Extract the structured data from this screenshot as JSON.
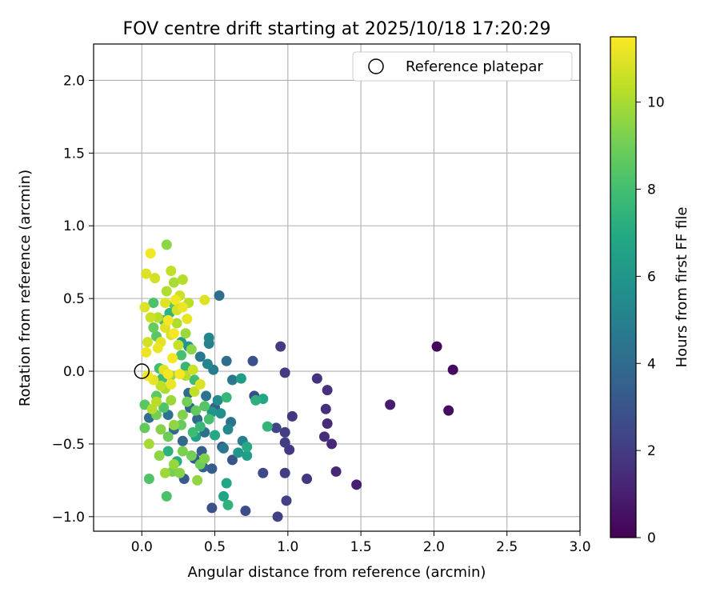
{
  "chart_data": {
    "type": "scatter",
    "title": "FOV centre drift starting at 2025/10/18 17:20:29",
    "xlabel": "Angular distance from reference (arcmin)",
    "ylabel": "Rotation from reference (arcmin)",
    "xlim": [
      -0.33,
      3.0
    ],
    "ylim": [
      -1.1,
      2.25
    ],
    "xticks": [
      0.0,
      0.5,
      1.0,
      1.5,
      2.0,
      2.5,
      3.0
    ],
    "xtick_labels": [
      "0.0",
      "0.5",
      "1.0",
      "1.5",
      "2.0",
      "2.5",
      "3.0"
    ],
    "yticks": [
      -1.0,
      -0.5,
      0.0,
      0.5,
      1.0,
      1.5,
      2.0
    ],
    "ytick_labels": [
      "−1.0",
      "−0.5",
      "0.0",
      "0.5",
      "1.0",
      "1.5",
      "2.0"
    ],
    "grid": true,
    "legend": {
      "position": "top-right",
      "label": "Reference platepar"
    },
    "reference_point": {
      "x": 0.0,
      "y": 0.0
    },
    "colorbar": {
      "label": "Hours from first FF file",
      "range": [
        0,
        11.5
      ],
      "ticks": [
        0,
        2,
        4,
        6,
        8,
        10
      ],
      "tick_labels": [
        "0",
        "2",
        "4",
        "6",
        "8",
        "10"
      ],
      "colormap": "viridis"
    },
    "points": [
      {
        "x": 2.02,
        "y": 0.17,
        "h": 0.2
      },
      {
        "x": 2.13,
        "y": 0.01,
        "h": 0.3
      },
      {
        "x": 2.1,
        "y": -0.27,
        "h": 0.4
      },
      {
        "x": 1.7,
        "y": -0.23,
        "h": 0.9
      },
      {
        "x": 1.47,
        "y": -0.78,
        "h": 1.0
      },
      {
        "x": 1.33,
        "y": -0.69,
        "h": 1.3
      },
      {
        "x": 1.3,
        "y": -0.5,
        "h": 1.3
      },
      {
        "x": 1.27,
        "y": -0.36,
        "h": 1.4
      },
      {
        "x": 1.26,
        "y": -0.26,
        "h": 1.5
      },
      {
        "x": 1.25,
        "y": -0.45,
        "h": 1.5
      },
      {
        "x": 1.27,
        "y": -0.13,
        "h": 1.6
      },
      {
        "x": 1.2,
        "y": -0.05,
        "h": 1.7
      },
      {
        "x": 1.13,
        "y": -0.74,
        "h": 1.8
      },
      {
        "x": 1.03,
        "y": -0.31,
        "h": 1.8
      },
      {
        "x": 1.01,
        "y": -0.54,
        "h": 1.9
      },
      {
        "x": 0.98,
        "y": -0.01,
        "h": 2.0
      },
      {
        "x": 0.95,
        "y": 0.17,
        "h": 2.0
      },
      {
        "x": 0.98,
        "y": -0.42,
        "h": 2.0
      },
      {
        "x": 0.98,
        "y": -0.49,
        "h": 2.1
      },
      {
        "x": 0.98,
        "y": -0.7,
        "h": 2.1
      },
      {
        "x": 0.99,
        "y": -0.89,
        "h": 2.2
      },
      {
        "x": 0.93,
        "y": -1.0,
        "h": 2.2
      },
      {
        "x": 0.92,
        "y": -0.39,
        "h": 2.3
      },
      {
        "x": 0.83,
        "y": -0.7,
        "h": 2.5
      },
      {
        "x": 0.77,
        "y": -0.17,
        "h": 2.7
      },
      {
        "x": 0.76,
        "y": 0.07,
        "h": 2.8
      },
      {
        "x": 0.71,
        "y": -0.96,
        "h": 2.7
      },
      {
        "x": 0.48,
        "y": -0.94,
        "h": 2.8
      },
      {
        "x": 0.62,
        "y": -0.61,
        "h": 3.0
      },
      {
        "x": 0.55,
        "y": -0.52,
        "h": 3.2
      },
      {
        "x": 0.48,
        "y": -0.67,
        "h": 3.3
      },
      {
        "x": 0.5,
        "y": -0.25,
        "h": 3.5
      },
      {
        "x": 0.41,
        "y": -0.55,
        "h": 3.4
      },
      {
        "x": 0.36,
        "y": -0.6,
        "h": 3.2
      },
      {
        "x": 0.29,
        "y": -0.74,
        "h": 3.3
      },
      {
        "x": 0.42,
        "y": -0.66,
        "h": 3.6
      },
      {
        "x": 0.53,
        "y": 0.52,
        "h": 4.2
      },
      {
        "x": 0.46,
        "y": 0.23,
        "h": 5.2
      },
      {
        "x": 0.46,
        "y": 0.19,
        "h": 5.0
      },
      {
        "x": 0.49,
        "y": 0.01,
        "h": 4.8
      },
      {
        "x": 0.58,
        "y": 0.07,
        "h": 4.2
      },
      {
        "x": 0.62,
        "y": -0.06,
        "h": 4.6
      },
      {
        "x": 0.61,
        "y": -0.35,
        "h": 4.4
      },
      {
        "x": 0.69,
        "y": -0.48,
        "h": 5.0
      },
      {
        "x": 0.72,
        "y": -0.58,
        "h": 6.5
      },
      {
        "x": 0.59,
        "y": -0.4,
        "h": 5.4
      },
      {
        "x": 0.54,
        "y": -0.29,
        "h": 5.7
      },
      {
        "x": 0.52,
        "y": -0.2,
        "h": 5.5
      },
      {
        "x": 0.44,
        "y": -0.17,
        "h": 4.4
      },
      {
        "x": 0.4,
        "y": 0.1,
        "h": 4.6
      },
      {
        "x": 0.45,
        "y": 0.05,
        "h": 5.3
      },
      {
        "x": 0.43,
        "y": -0.42,
        "h": 4.2
      },
      {
        "x": 0.38,
        "y": -0.33,
        "h": 3.8
      },
      {
        "x": 0.33,
        "y": -0.25,
        "h": 3.6
      },
      {
        "x": 0.28,
        "y": -0.48,
        "h": 3.9
      },
      {
        "x": 0.22,
        "y": -0.4,
        "h": 4.1
      },
      {
        "x": 0.18,
        "y": -0.3,
        "h": 4.4
      },
      {
        "x": 0.05,
        "y": -0.32,
        "h": 4.3
      },
      {
        "x": 0.32,
        "y": -0.15,
        "h": 4.0
      },
      {
        "x": 0.56,
        "y": -0.53,
        "h": 4.7
      },
      {
        "x": 0.66,
        "y": -0.56,
        "h": 6.0
      },
      {
        "x": 0.58,
        "y": -0.77,
        "h": 6.8
      },
      {
        "x": 0.56,
        "y": -0.86,
        "h": 6.6
      },
      {
        "x": 0.59,
        "y": -0.92,
        "h": 7.4
      },
      {
        "x": 0.68,
        "y": -0.05,
        "h": 6.3
      },
      {
        "x": 0.72,
        "y": -0.52,
        "h": 7.0
      },
      {
        "x": 0.78,
        "y": -0.2,
        "h": 7.3
      },
      {
        "x": 0.83,
        "y": -0.19,
        "h": 6.8
      },
      {
        "x": 0.86,
        "y": -0.38,
        "h": 7.5
      },
      {
        "x": 0.58,
        "y": -0.18,
        "h": 7.6
      },
      {
        "x": 0.48,
        "y": -0.28,
        "h": 6.0
      },
      {
        "x": 0.5,
        "y": -0.44,
        "h": 6.9
      },
      {
        "x": 0.37,
        "y": -0.45,
        "h": 6.4
      },
      {
        "x": 0.32,
        "y": 0.17,
        "h": 6.0
      },
      {
        "x": 0.27,
        "y": 0.2,
        "h": 6.2
      },
      {
        "x": 0.4,
        "y": -0.38,
        "h": 7.6
      },
      {
        "x": 0.35,
        "y": -0.42,
        "h": 7.8
      },
      {
        "x": 0.24,
        "y": -0.62,
        "h": 7.1
      },
      {
        "x": 0.18,
        "y": -0.55,
        "h": 7.3
      },
      {
        "x": 0.17,
        "y": -0.86,
        "h": 8.2
      },
      {
        "x": 0.05,
        "y": -0.74,
        "h": 8.3
      },
      {
        "x": 0.02,
        "y": -0.39,
        "h": 8.7
      },
      {
        "x": 0.02,
        "y": -0.23,
        "h": 8.5
      },
      {
        "x": 0.1,
        "y": -0.17,
        "h": 8.6
      },
      {
        "x": 0.14,
        "y": -0.05,
        "h": 7.8
      },
      {
        "x": 0.12,
        "y": 0.02,
        "h": 8.0
      },
      {
        "x": 0.1,
        "y": 0.24,
        "h": 8.5
      },
      {
        "x": 0.08,
        "y": 0.3,
        "h": 8.8
      },
      {
        "x": 0.08,
        "y": 0.47,
        "h": 8.2
      },
      {
        "x": 0.15,
        "y": 0.35,
        "h": 7.9
      },
      {
        "x": 0.19,
        "y": 0.4,
        "h": 7.4
      },
      {
        "x": 0.22,
        "y": 0.46,
        "h": 8.4
      },
      {
        "x": 0.27,
        "y": 0.11,
        "h": 8.1
      },
      {
        "x": 0.3,
        "y": 0.03,
        "h": 7.6
      },
      {
        "x": 0.36,
        "y": -0.06,
        "h": 7.9
      },
      {
        "x": 0.4,
        "y": -0.64,
        "h": 8.9
      },
      {
        "x": 0.43,
        "y": -0.6,
        "h": 9.3
      },
      {
        "x": 0.38,
        "y": -0.75,
        "h": 9.6
      },
      {
        "x": 0.34,
        "y": -0.58,
        "h": 9.0
      },
      {
        "x": 0.28,
        "y": -0.55,
        "h": 9.2
      },
      {
        "x": 0.26,
        "y": -0.7,
        "h": 9.4
      },
      {
        "x": 0.22,
        "y": -0.64,
        "h": 9.7
      },
      {
        "x": 0.21,
        "y": -0.69,
        "h": 9.1
      },
      {
        "x": 0.16,
        "y": -0.7,
        "h": 9.8
      },
      {
        "x": 0.12,
        "y": -0.58,
        "h": 9.5
      },
      {
        "x": 0.05,
        "y": -0.5,
        "h": 9.9
      },
      {
        "x": 0.13,
        "y": -0.4,
        "h": 9.4
      },
      {
        "x": 0.18,
        "y": -0.45,
        "h": 8.9
      },
      {
        "x": 0.22,
        "y": -0.37,
        "h": 9.6
      },
      {
        "x": 0.28,
        "y": -0.3,
        "h": 9.3
      },
      {
        "x": 0.31,
        "y": -0.21,
        "h": 9.0
      },
      {
        "x": 0.2,
        "y": -0.2,
        "h": 9.8
      },
      {
        "x": 0.16,
        "y": -0.12,
        "h": 10.0
      },
      {
        "x": 0.07,
        "y": -0.26,
        "h": 10.2
      },
      {
        "x": 0.1,
        "y": -0.21,
        "h": 10.3
      },
      {
        "x": 0.13,
        "y": -0.1,
        "h": 10.4
      },
      {
        "x": 0.2,
        "y": -0.03,
        "h": 9.7
      },
      {
        "x": 0.3,
        "y": -0.03,
        "h": 10.2
      },
      {
        "x": 0.35,
        "y": 0.01,
        "h": 10.6
      },
      {
        "x": 0.34,
        "y": 0.15,
        "h": 9.5
      },
      {
        "x": 0.3,
        "y": 0.26,
        "h": 9.8
      },
      {
        "x": 0.24,
        "y": 0.33,
        "h": 10.1
      },
      {
        "x": 0.25,
        "y": 0.18,
        "h": 10.5
      },
      {
        "x": 0.2,
        "y": 0.25,
        "h": 10.8
      },
      {
        "x": 0.16,
        "y": 0.3,
        "h": 10.9
      },
      {
        "x": 0.13,
        "y": 0.2,
        "h": 11.0
      },
      {
        "x": 0.03,
        "y": 0.13,
        "h": 11.2
      },
      {
        "x": 0.04,
        "y": 0.2,
        "h": 10.7
      },
      {
        "x": 0.02,
        "y": 0.44,
        "h": 10.9
      },
      {
        "x": 0.06,
        "y": 0.37,
        "h": 10.6
      },
      {
        "x": 0.11,
        "y": 0.37,
        "h": 10.3
      },
      {
        "x": 0.17,
        "y": 0.55,
        "h": 10.1
      },
      {
        "x": 0.17,
        "y": 0.87,
        "h": 9.5
      },
      {
        "x": 0.2,
        "y": 0.69,
        "h": 10.4
      },
      {
        "x": 0.22,
        "y": 0.61,
        "h": 10.0
      },
      {
        "x": 0.26,
        "y": 0.52,
        "h": 10.6
      },
      {
        "x": 0.28,
        "y": 0.63,
        "h": 10.2
      },
      {
        "x": 0.32,
        "y": 0.47,
        "h": 10.3
      },
      {
        "x": 0.24,
        "y": 0.42,
        "h": 10.8
      },
      {
        "x": 0.28,
        "y": 0.44,
        "h": 11.2
      },
      {
        "x": 0.43,
        "y": 0.49,
        "h": 10.9
      },
      {
        "x": 0.09,
        "y": 0.64,
        "h": 10.7
      },
      {
        "x": 0.03,
        "y": 0.67,
        "h": 10.9
      },
      {
        "x": 0.06,
        "y": 0.81,
        "h": 11.3
      },
      {
        "x": 0.16,
        "y": 0.47,
        "h": 11.0
      },
      {
        "x": 0.23,
        "y": 0.49,
        "h": 11.3
      },
      {
        "x": 0.18,
        "y": 0.35,
        "h": 11.4
      },
      {
        "x": 0.22,
        "y": 0.26,
        "h": 11.4
      },
      {
        "x": 0.31,
        "y": 0.36,
        "h": 11.1
      },
      {
        "x": 0.11,
        "y": 0.16,
        "h": 11.2
      },
      {
        "x": 0.15,
        "y": 0.01,
        "h": 11.0
      },
      {
        "x": 0.18,
        "y": -0.02,
        "h": 11.3
      },
      {
        "x": 0.26,
        "y": -0.02,
        "h": 11.4
      },
      {
        "x": 0.08,
        "y": -0.06,
        "h": 11.1
      },
      {
        "x": 0.04,
        "y": -0.03,
        "h": 11.3
      },
      {
        "x": 0.21,
        "y": 0.09,
        "h": 11.4
      },
      {
        "x": 0.4,
        "y": -0.09,
        "h": 10.9
      },
      {
        "x": 0.36,
        "y": -0.14,
        "h": 10.4
      },
      {
        "x": 0.2,
        "y": -0.09,
        "h": 11.2
      },
      {
        "x": 0.43,
        "y": -0.24,
        "h": 8.4
      },
      {
        "x": 0.46,
        "y": -0.33,
        "h": 8.1
      },
      {
        "x": 0.37,
        "y": -0.27,
        "h": 8.7
      },
      {
        "x": 0.27,
        "y": -0.37,
        "h": 8.8
      },
      {
        "x": 0.1,
        "y": -0.3,
        "h": 9.0
      },
      {
        "x": 0.15,
        "y": -0.25,
        "h": 8.3
      }
    ]
  }
}
